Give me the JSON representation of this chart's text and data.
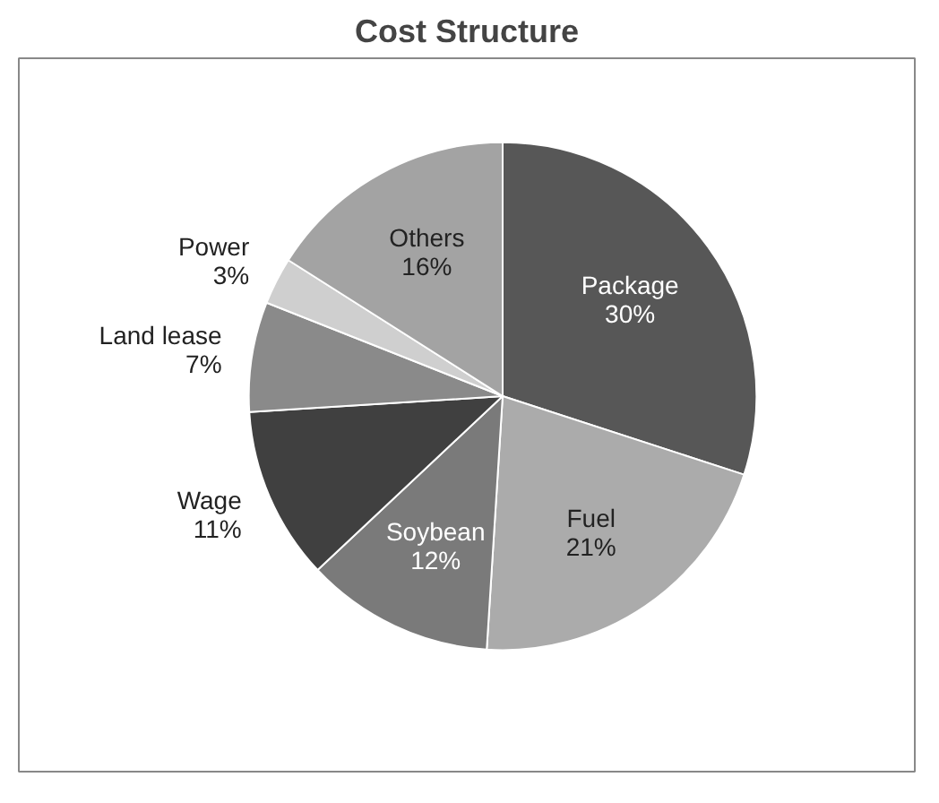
{
  "chart_data": {
    "type": "pie",
    "title": "Cost Structure",
    "categories": [
      "Package",
      "Fuel",
      "Soybean",
      "Wage",
      "Land lease",
      "Power",
      "Others"
    ],
    "values": [
      30,
      21,
      12,
      11,
      7,
      3,
      16
    ],
    "value_labels": [
      "30%",
      "21%",
      "12%",
      "11%",
      "7%",
      "3%",
      "16%"
    ],
    "colors": [
      "#575757",
      "#ababab",
      "#7a7a7a",
      "#404040",
      "#8a8a8a",
      "#cfcfcf",
      "#a3a3a3"
    ]
  }
}
